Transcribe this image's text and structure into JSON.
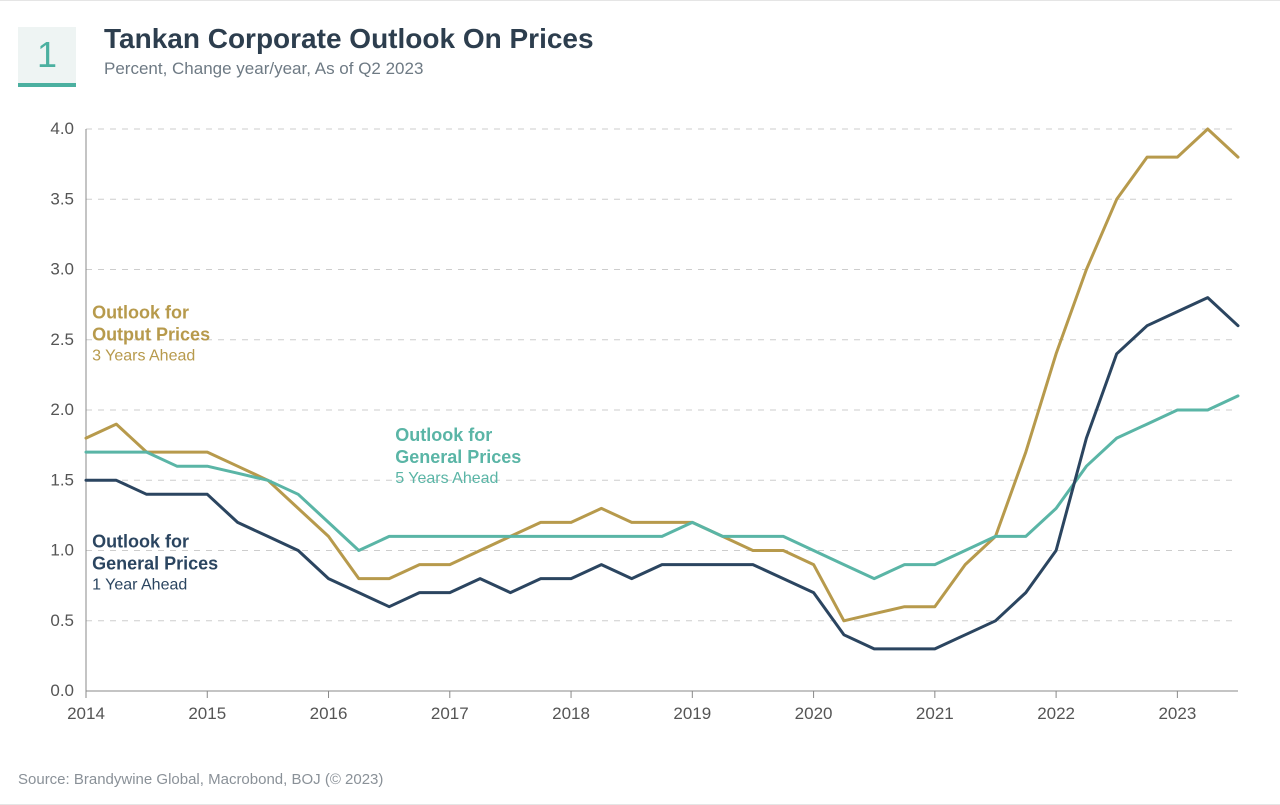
{
  "badge": "1",
  "title": "Tankan Corporate Outlook On Prices",
  "subtitle": "Percent, Change year/year, As of Q2 2023",
  "source": "Source: Brandywine Global, Macrobond, BOJ (© 2023)",
  "colors": {
    "badge_bg": "#eef4f3",
    "badge_border": "#4bb0a0",
    "badge_text": "#4bb0a0",
    "title": "#2d3e4e",
    "subtitle": "#6e7a84",
    "axis": "#555555",
    "grid": "#cdcdcd",
    "background": "#ffffff"
  },
  "chart": {
    "type": "line",
    "x_start": 2014.0,
    "x_end": 2023.5,
    "x_ticks": [
      2014,
      2015,
      2016,
      2017,
      2018,
      2019,
      2020,
      2021,
      2022,
      2023
    ],
    "y_min": 0.0,
    "y_max": 4.0,
    "y_ticks": [
      0.0,
      0.5,
      1.0,
      1.5,
      2.0,
      2.5,
      3.0,
      3.5,
      4.0
    ],
    "grid_dash": "6,6",
    "line_width": 3,
    "axis_fontsize": 17,
    "series": [
      {
        "id": "output_3y",
        "color": "#b79a4c",
        "label_title": "Outlook for",
        "label_title2": "Output Prices",
        "label_sub": "3 Years Ahead",
        "label_xy": [
          2014.05,
          2.65
        ],
        "x": [
          2014.0,
          2014.25,
          2014.5,
          2014.75,
          2015.0,
          2015.25,
          2015.5,
          2015.75,
          2016.0,
          2016.25,
          2016.5,
          2016.75,
          2017.0,
          2017.25,
          2017.5,
          2017.75,
          2018.0,
          2018.25,
          2018.5,
          2018.75,
          2019.0,
          2019.25,
          2019.5,
          2019.75,
          2020.0,
          2020.25,
          2020.5,
          2020.75,
          2021.0,
          2021.25,
          2021.5,
          2021.75,
          2022.0,
          2022.25,
          2022.5,
          2022.75,
          2023.0,
          2023.25,
          2023.5
        ],
        "y": [
          1.8,
          1.9,
          1.7,
          1.7,
          1.7,
          1.6,
          1.5,
          1.3,
          1.1,
          0.8,
          0.8,
          0.9,
          0.9,
          1.0,
          1.1,
          1.2,
          1.2,
          1.3,
          1.2,
          1.2,
          1.2,
          1.1,
          1.0,
          1.0,
          0.9,
          0.5,
          0.55,
          0.6,
          0.6,
          0.9,
          1.1,
          1.7,
          2.4,
          3.0,
          3.5,
          3.8,
          3.8,
          4.0,
          3.8
        ]
      },
      {
        "id": "general_5y",
        "color": "#5ab5a6",
        "label_title": "Outlook for",
        "label_title2": "General Prices",
        "label_sub": "5 Years Ahead",
        "label_xy": [
          2016.55,
          1.78
        ],
        "x": [
          2014.0,
          2014.25,
          2014.5,
          2014.75,
          2015.0,
          2015.25,
          2015.5,
          2015.75,
          2016.0,
          2016.25,
          2016.5,
          2016.75,
          2017.0,
          2017.25,
          2017.5,
          2017.75,
          2018.0,
          2018.25,
          2018.5,
          2018.75,
          2019.0,
          2019.25,
          2019.5,
          2019.75,
          2020.0,
          2020.25,
          2020.5,
          2020.75,
          2021.0,
          2021.25,
          2021.5,
          2021.75,
          2022.0,
          2022.25,
          2022.5,
          2022.75,
          2023.0,
          2023.25,
          2023.5
        ],
        "y": [
          1.7,
          1.7,
          1.7,
          1.6,
          1.6,
          1.55,
          1.5,
          1.4,
          1.2,
          1.0,
          1.1,
          1.1,
          1.1,
          1.1,
          1.1,
          1.1,
          1.1,
          1.1,
          1.1,
          1.1,
          1.2,
          1.1,
          1.1,
          1.1,
          1.0,
          0.9,
          0.8,
          0.9,
          0.9,
          1.0,
          1.1,
          1.1,
          1.3,
          1.6,
          1.8,
          1.9,
          2.0,
          2.0,
          2.1
        ]
      },
      {
        "id": "general_1y",
        "color": "#2b4560",
        "label_title": "Outlook for",
        "label_title2": "General Prices",
        "label_sub": "1 Year Ahead",
        "label_xy": [
          2014.05,
          1.02
        ],
        "x": [
          2014.0,
          2014.25,
          2014.5,
          2014.75,
          2015.0,
          2015.25,
          2015.5,
          2015.75,
          2016.0,
          2016.25,
          2016.5,
          2016.75,
          2017.0,
          2017.25,
          2017.5,
          2017.75,
          2018.0,
          2018.25,
          2018.5,
          2018.75,
          2019.0,
          2019.25,
          2019.5,
          2019.75,
          2020.0,
          2020.25,
          2020.5,
          2020.75,
          2021.0,
          2021.25,
          2021.5,
          2021.75,
          2022.0,
          2022.25,
          2022.5,
          2022.75,
          2023.0,
          2023.25,
          2023.5
        ],
        "y": [
          1.5,
          1.5,
          1.4,
          1.4,
          1.4,
          1.2,
          1.1,
          1.0,
          0.8,
          0.7,
          0.6,
          0.7,
          0.7,
          0.8,
          0.7,
          0.8,
          0.8,
          0.9,
          0.8,
          0.9,
          0.9,
          0.9,
          0.9,
          0.8,
          0.7,
          0.4,
          0.3,
          0.3,
          0.3,
          0.4,
          0.5,
          0.7,
          1.0,
          1.8,
          2.4,
          2.6,
          2.7,
          2.8,
          2.6
        ]
      }
    ]
  }
}
